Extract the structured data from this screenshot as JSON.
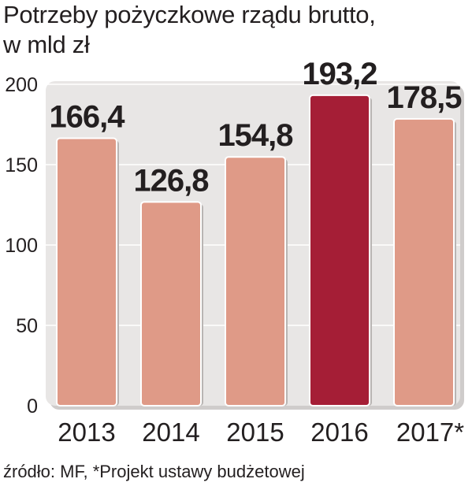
{
  "title_line1": "Potrzeby pożyczkowe rządu brutto,",
  "title_line2": "w mld zł",
  "source": "źródło: MF, *Projekt ustawy budżetowej",
  "colors": {
    "bar": "#df9a87",
    "highlight": "#a51e36",
    "panel": "#e8e6e5",
    "grid": "#ffffff",
    "text": "#231f20"
  },
  "chart_data": {
    "type": "bar",
    "categories": [
      "2013",
      "2014",
      "2015",
      "2016",
      "2017*"
    ],
    "values": [
      166.4,
      126.8,
      154.8,
      193.2,
      178.5
    ],
    "value_labels": [
      "166,4",
      "126,8",
      "154,8",
      "193,2",
      "178,5"
    ],
    "highlight_index": 3,
    "ylim": [
      0,
      200
    ],
    "yticks": [
      "0",
      "50",
      "100",
      "150",
      "200"
    ],
    "ytick_values": [
      0,
      50,
      100,
      150,
      200
    ],
    "grid": true
  }
}
